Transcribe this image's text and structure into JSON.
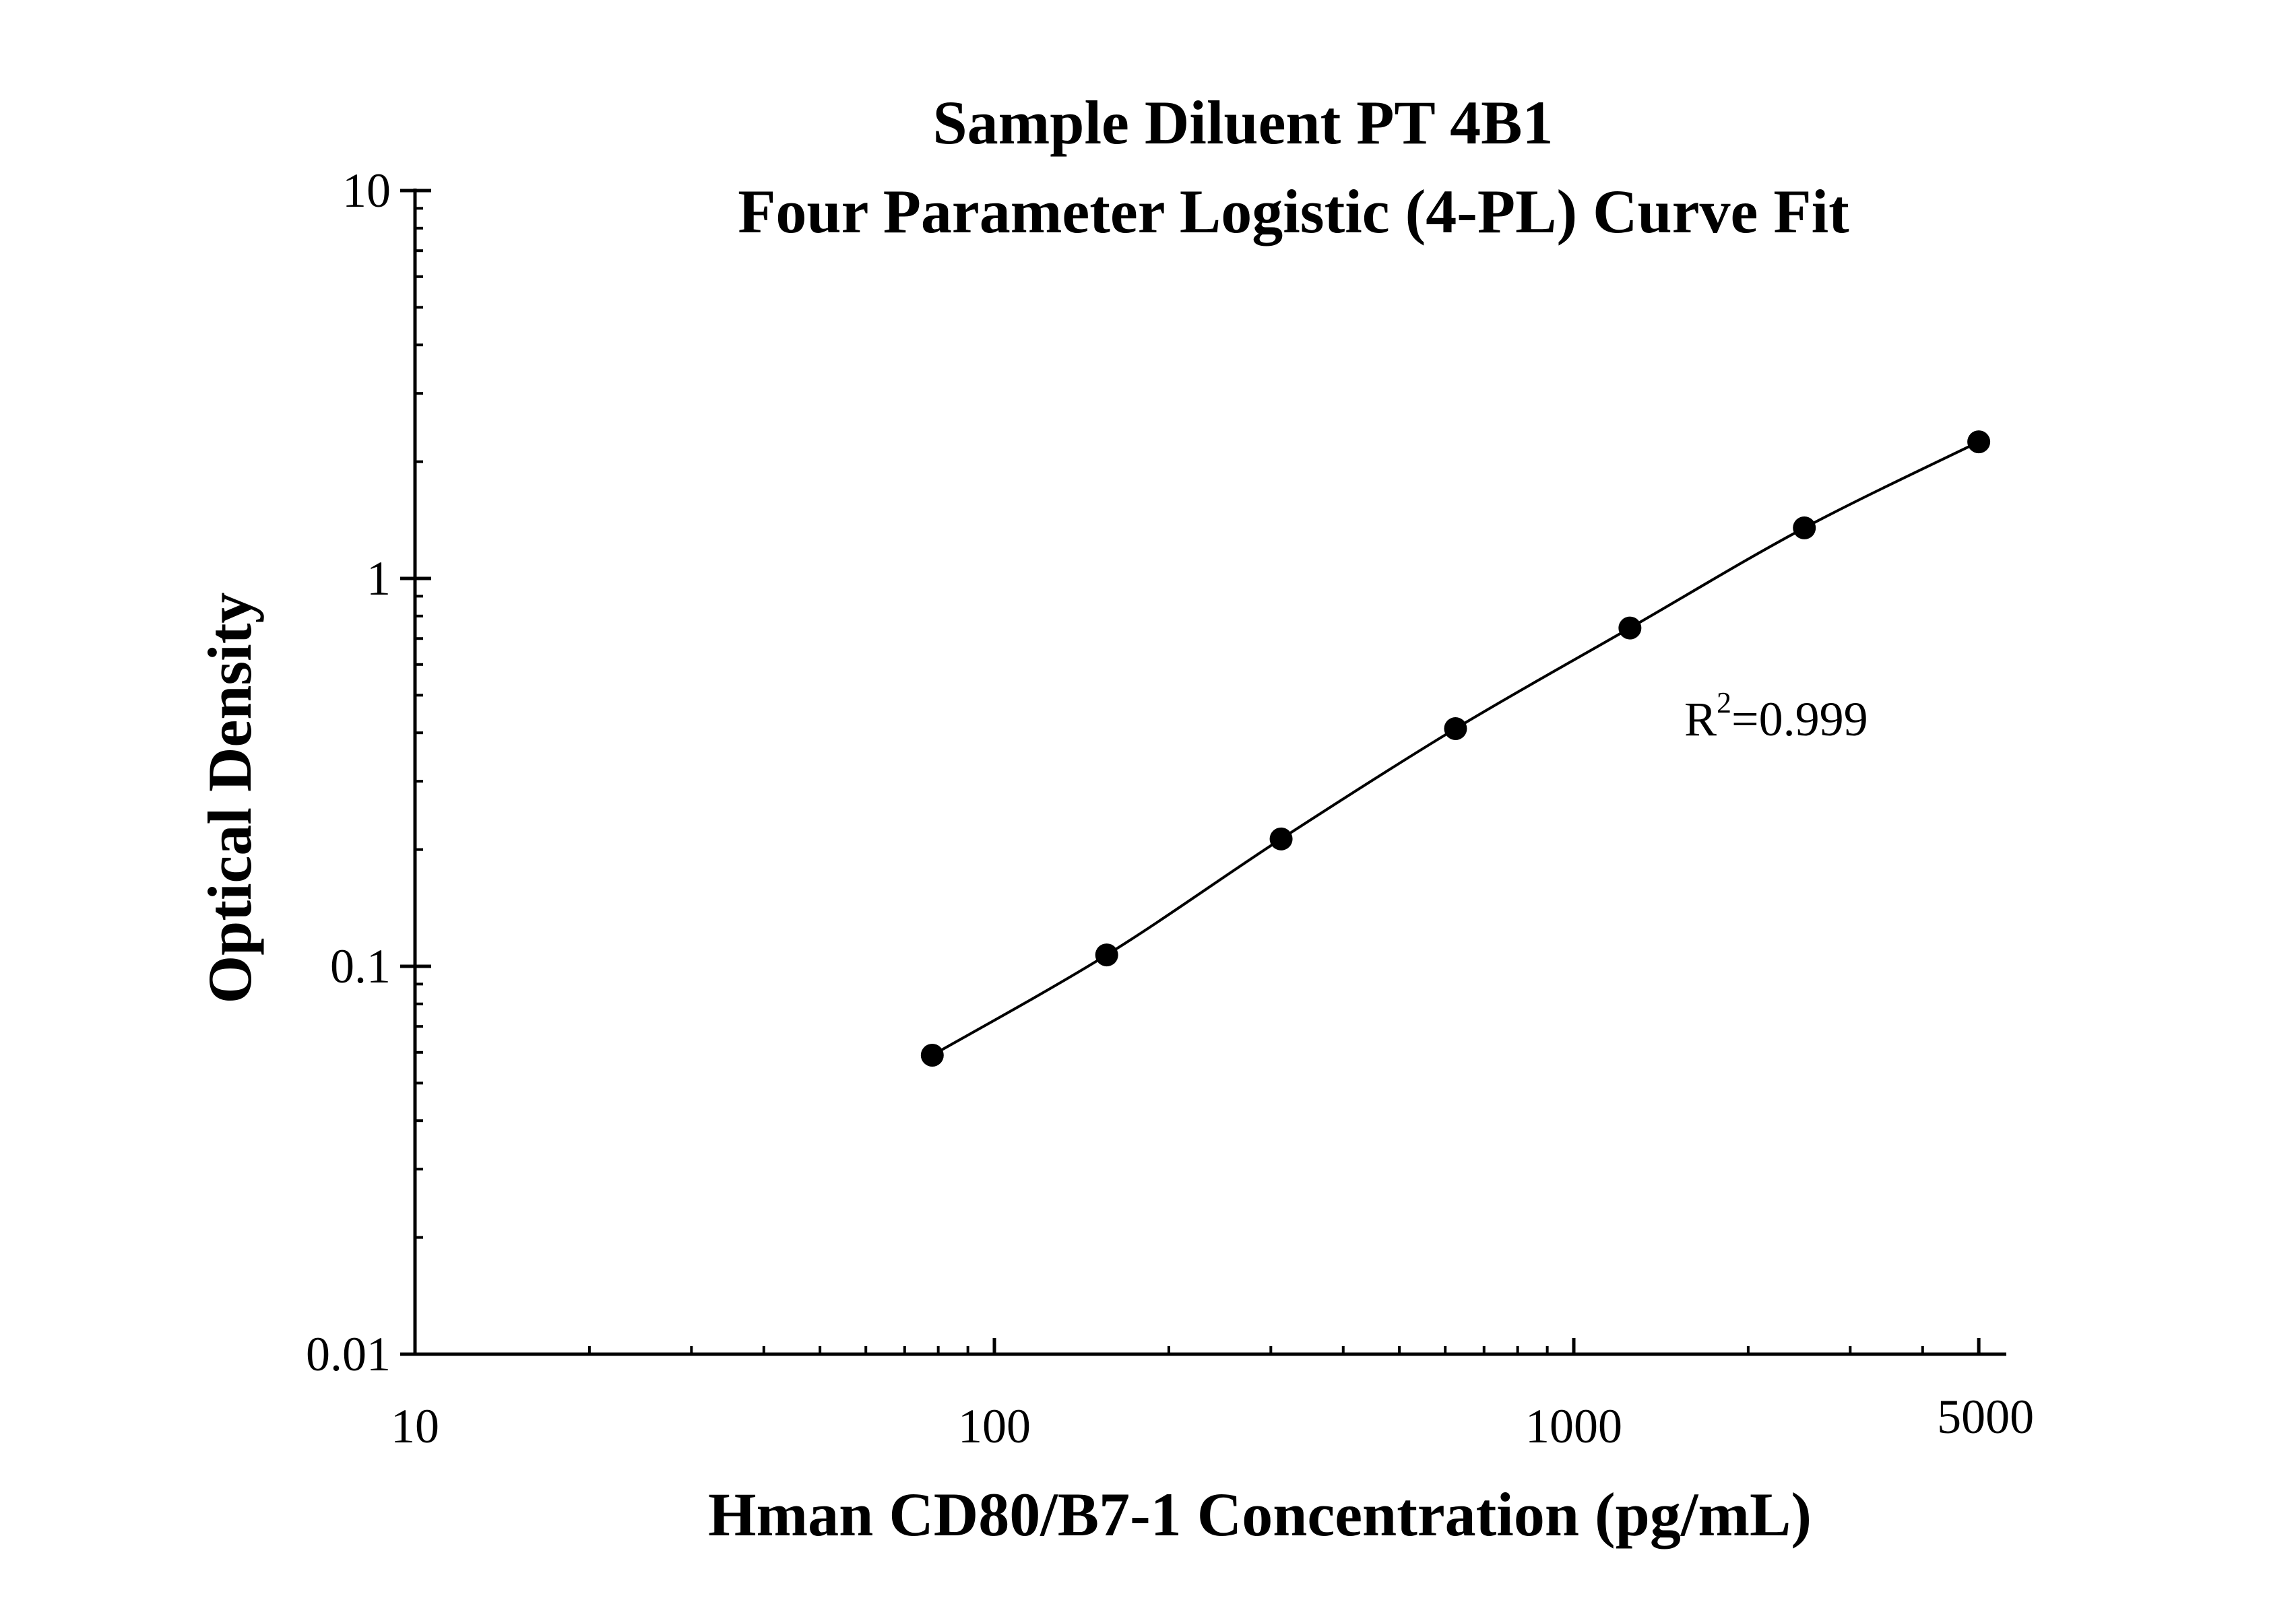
{
  "chart_data": {
    "type": "scatter",
    "title": "Sample Diluent PT 4B1",
    "subtitle": "Four Parameter Logistic (4-PL) Curve Fit",
    "xlabel": "Hman CD80/B7-1 Concentration (pg/mL)",
    "ylabel": "Optical Density",
    "xscale": "log",
    "yscale": "log",
    "xlim": [
      10,
      5000
    ],
    "ylim": [
      0.01,
      10
    ],
    "x_ticks": [
      10,
      100,
      1000,
      5000
    ],
    "x_tick_labels": [
      "10",
      "100",
      "1000",
      "5000"
    ],
    "y_ticks": [
      0.01,
      0.1,
      1,
      10
    ],
    "y_tick_labels": [
      "0.01",
      "0.1",
      "1",
      "10"
    ],
    "grid": false,
    "legend": "none",
    "series": [
      {
        "points": [
          {
            "x": 78.125,
            "y": 0.059
          },
          {
            "x": 156.25,
            "y": 0.107
          },
          {
            "x": 312.5,
            "y": 0.213
          },
          {
            "x": 625,
            "y": 0.41
          },
          {
            "x": 1250,
            "y": 0.745
          },
          {
            "x": 2500,
            "y": 1.35
          },
          {
            "x": 5000,
            "y": 2.25
          }
        ]
      }
    ],
    "annotation": {
      "base": "R",
      "superscript": "2",
      "value": "=0.999"
    },
    "colors": {
      "points": "#000000",
      "curve": "#000000",
      "axes": "#000000"
    }
  }
}
